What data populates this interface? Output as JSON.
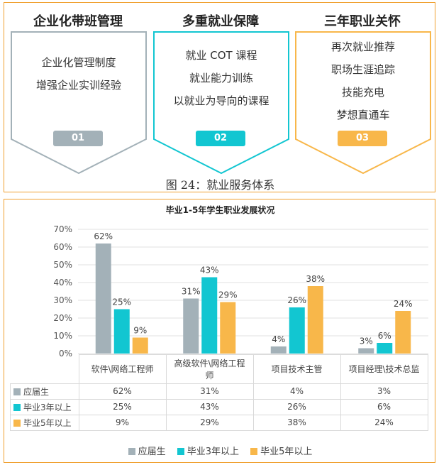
{
  "top": {
    "columns": [
      {
        "title": "企业化带班管理",
        "lines": [
          "企业化管理制度",
          "增强企业实训经验"
        ],
        "badge": "01",
        "color": "#a3b1b8"
      },
      {
        "title": "多重就业保障",
        "lines": [
          "就业 COT 课程",
          "就业能力训练",
          "以就业为导向的课程"
        ],
        "badge": "02",
        "color": "#12c6d1"
      },
      {
        "title": "三年职业关怀",
        "lines": [
          "再次就业推荐",
          "职场生涯追踪",
          "技能充电",
          "梦想直通车"
        ],
        "badge": "03",
        "color": "#f8b74a"
      }
    ],
    "caption": "图 24：就业服务体系"
  },
  "chart_data": {
    "type": "bar",
    "title": "毕业1-5年学生职业发展状况",
    "categories": [
      "软件\\网络工程师",
      "高级软件\\网络工程师",
      "项目技术主管",
      "项目经理\\技术总监"
    ],
    "category_lines": [
      [
        "软件\\网络工程师"
      ],
      [
        "高级软件\\网络工程",
        "师"
      ],
      [
        "项目技术主管"
      ],
      [
        "项目经理\\技术总监"
      ]
    ],
    "series": [
      {
        "name": "应届生",
        "values": [
          62,
          31,
          4,
          3
        ],
        "labels": [
          "62%",
          "31%",
          "4%",
          "3%"
        ],
        "color": "#a3b1b8"
      },
      {
        "name": "毕业3年以上",
        "values": [
          25,
          43,
          26,
          6
        ],
        "labels": [
          "25%",
          "43%",
          "26%",
          "6%"
        ],
        "color": "#12c6d1"
      },
      {
        "name": "毕业5年以上",
        "values": [
          9,
          29,
          38,
          24
        ],
        "labels": [
          "9%",
          "29%",
          "38%",
          "24%"
        ],
        "color": "#f8b74a"
      }
    ],
    "yticks": [
      "0%",
      "10%",
      "20%",
      "30%",
      "40%",
      "50%",
      "60%",
      "70%"
    ],
    "ylim": [
      0,
      70
    ],
    "grid": true,
    "legend": "bottom"
  }
}
